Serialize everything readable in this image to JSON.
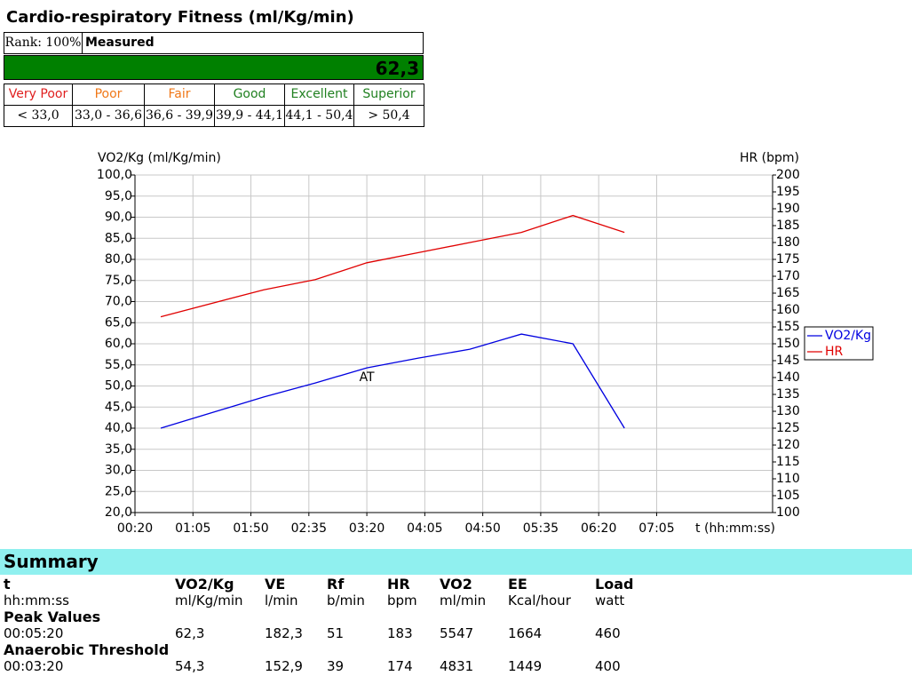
{
  "header": {
    "title": "Cardio-respiratory Fitness (ml/Kg/min)",
    "rank": "Rank: 100%",
    "measured_label": "Measured",
    "measured_value": "62,3",
    "ratings": [
      {
        "name": "Very Poor",
        "range": "< 33,0",
        "color": "#e02020"
      },
      {
        "name": "Poor",
        "range": "33,0 - 36,6",
        "color": "#f07818"
      },
      {
        "name": "Fair",
        "range": "36,6 - 39,9",
        "color": "#f07818"
      },
      {
        "name": "Good",
        "range": "39,9 - 44,1",
        "color": "#208020"
      },
      {
        "name": "Excellent",
        "range": "44,1 - 50,4",
        "color": "#208020"
      },
      {
        "name": "Superior",
        "range": "> 50,4",
        "color": "#208020"
      }
    ]
  },
  "chart_data": {
    "type": "line",
    "ylabel": "VO2/Kg (ml/Kg/min)",
    "y2label": "HR (bpm)",
    "xlabel": "t (hh:mm:ss)",
    "x": [
      40,
      120,
      160,
      200,
      240,
      280,
      320,
      360,
      400
    ],
    "series": [
      {
        "name": "VO2/Kg",
        "color": "#0000e0",
        "values": [
          40.0,
          47.4,
          50.7,
          54.3,
          56.6,
          58.7,
          62.3,
          60.0,
          40.0
        ]
      },
      {
        "name": "HR",
        "color": "#e00000",
        "axis": "y2",
        "values": [
          158,
          166,
          169,
          174,
          177,
          180,
          183,
          188,
          183
        ]
      }
    ],
    "xlim": [
      20,
      515
    ],
    "xticks": [
      {
        "value": 20,
        "label": "00:20"
      },
      {
        "value": 65,
        "label": "01:05"
      },
      {
        "value": 110,
        "label": "01:50"
      },
      {
        "value": 155,
        "label": "02:35"
      },
      {
        "value": 200,
        "label": "03:20"
      },
      {
        "value": 245,
        "label": "04:05"
      },
      {
        "value": 290,
        "label": "04:50"
      },
      {
        "value": 335,
        "label": "05:35"
      },
      {
        "value": 380,
        "label": "06:20"
      },
      {
        "value": 425,
        "label": "07:05"
      }
    ],
    "ylim": [
      20,
      100
    ],
    "yticks": [
      {
        "value": 20,
        "label": "20,0"
      },
      {
        "value": 25,
        "label": "25,0"
      },
      {
        "value": 30,
        "label": "30,0"
      },
      {
        "value": 35,
        "label": "35,0"
      },
      {
        "value": 40,
        "label": "40,0"
      },
      {
        "value": 45,
        "label": "45,0"
      },
      {
        "value": 50,
        "label": "50,0"
      },
      {
        "value": 55,
        "label": "55,0"
      },
      {
        "value": 60,
        "label": "60,0"
      },
      {
        "value": 65,
        "label": "65,0"
      },
      {
        "value": 70,
        "label": "70,0"
      },
      {
        "value": 75,
        "label": "75,0"
      },
      {
        "value": 80,
        "label": "80,0"
      },
      {
        "value": 85,
        "label": "85,0"
      },
      {
        "value": 90,
        "label": "90,0"
      },
      {
        "value": 95,
        "label": "95,0"
      },
      {
        "value": 100,
        "label": "100,0"
      }
    ],
    "y2lim": [
      100,
      200
    ],
    "y2ticks": [
      100,
      105,
      110,
      115,
      120,
      125,
      130,
      135,
      140,
      145,
      150,
      155,
      160,
      165,
      170,
      175,
      180,
      185,
      190,
      195,
      200
    ],
    "annotations": [
      {
        "text": "AT",
        "x": 200,
        "y": 54.3
      }
    ],
    "grid": true,
    "legend": "right"
  },
  "summary": {
    "title": "Summary",
    "columns": [
      {
        "name": "t",
        "unit": "hh:mm:ss"
      },
      {
        "name": "VO2/Kg",
        "unit": "ml/Kg/min"
      },
      {
        "name": "VE",
        "unit": "l/min"
      },
      {
        "name": "Rf",
        "unit": "b/min"
      },
      {
        "name": "HR",
        "unit": "bpm"
      },
      {
        "name": "VO2",
        "unit": "ml/min"
      },
      {
        "name": "EE",
        "unit": "Kcal/hour"
      },
      {
        "name": "Load",
        "unit": "watt"
      }
    ],
    "rows": [
      {
        "label": "Peak Values",
        "values": [
          "00:05:20",
          "62,3",
          "182,3",
          "51",
          "183",
          "5547",
          "1664",
          "460"
        ]
      },
      {
        "label": "Anaerobic Threshold",
        "values": [
          "00:03:20",
          "54,3",
          "152,9",
          "39",
          "174",
          "4831",
          "1449",
          "400"
        ]
      }
    ]
  }
}
